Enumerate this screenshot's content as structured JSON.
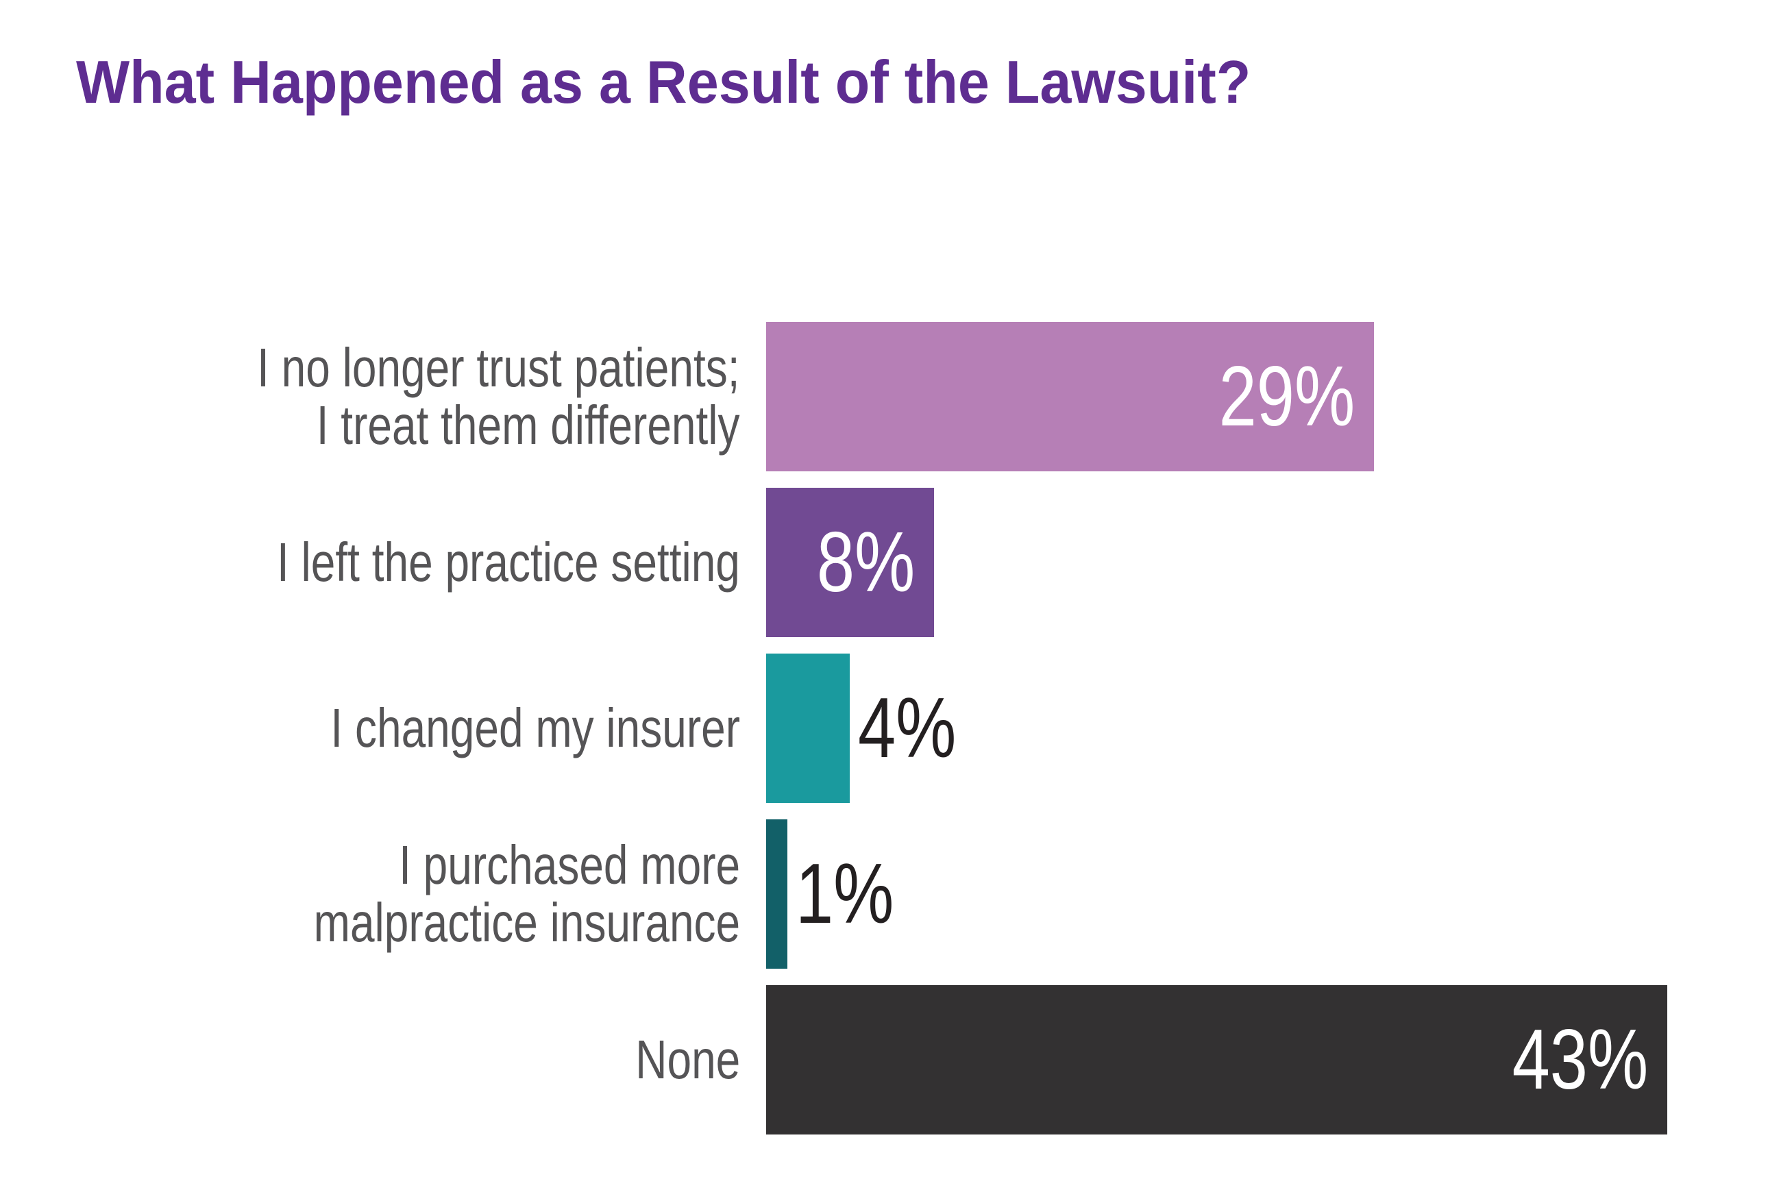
{
  "title": "What Happened as a Result of the Lawsuit?",
  "colors": {
    "title": "#5e2d91",
    "label_text": "#555456",
    "value_inside": "#ffffff",
    "value_outside": "#231f20"
  },
  "chart_data": {
    "type": "bar",
    "orientation": "horizontal",
    "title": "What Happened as a Result of the Lawsuit?",
    "xlabel": "",
    "ylabel": "",
    "categories": [
      "I no longer trust patients; I treat them differently",
      "I left the practice setting",
      "I changed my insurer",
      "I purchased more malpractice insurance",
      "None"
    ],
    "values": [
      29,
      8,
      4,
      1,
      43
    ],
    "value_labels": [
      "29%",
      "8%",
      "4%",
      "1%",
      "43%"
    ],
    "bar_colors": [
      "#b67fb6",
      "#714a93",
      "#1a9a9e",
      "#126068",
      "#333132"
    ],
    "unit": "%",
    "grid": false,
    "legend": null
  },
  "rows": [
    {
      "label_lines": [
        "I no longer trust patients;",
        "I treat them differently"
      ],
      "value": 29,
      "value_label": "29%",
      "color": "#b67fb6"
    },
    {
      "label_lines": [
        "I left the practice setting"
      ],
      "value": 8,
      "value_label": "8%",
      "color": "#714a93"
    },
    {
      "label_lines": [
        "I changed my insurer"
      ],
      "value": 4,
      "value_label": "4%",
      "color": "#1a9a9e"
    },
    {
      "label_lines": [
        "I purchased more",
        "malpractice insurance"
      ],
      "value": 1,
      "value_label": "1%",
      "color": "#126068"
    },
    {
      "label_lines": [
        "None"
      ],
      "value": 43,
      "value_label": "43%",
      "color": "#333132"
    }
  ]
}
